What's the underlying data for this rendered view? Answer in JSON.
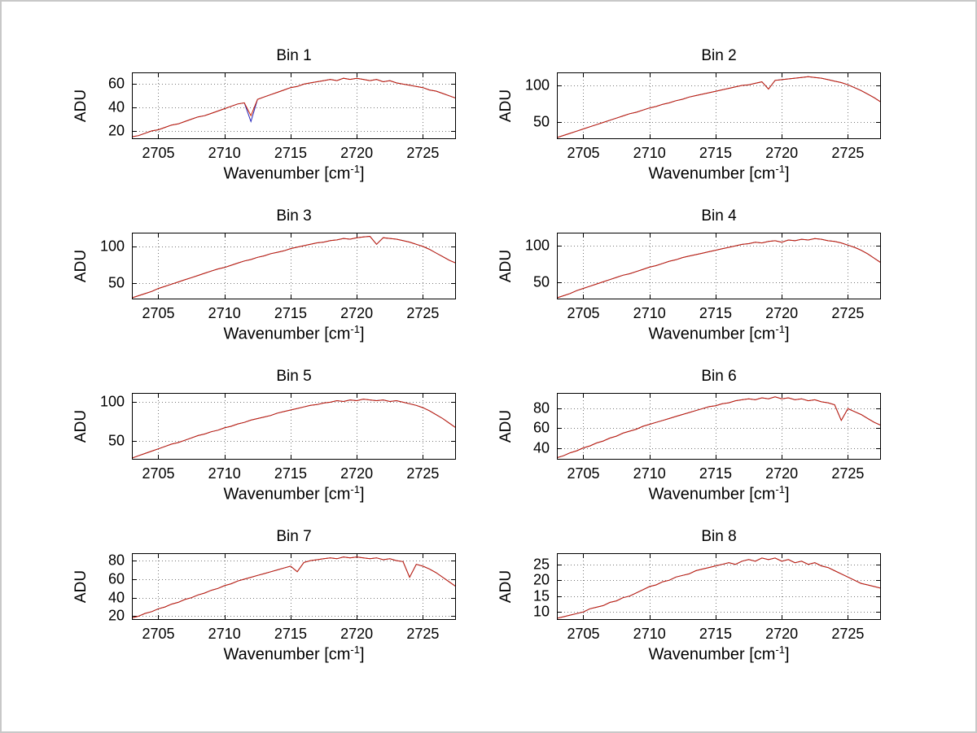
{
  "figure": {
    "background": "#ffffff",
    "border_color": "#c8c8c8"
  },
  "chart_data": {
    "type": "line",
    "layout": "4x2 grid of subplots",
    "grid": "dotted",
    "ylabel": "ADU",
    "xlabel": {
      "prefix": "Wavenumber [cm",
      "sup": "-1",
      "suffix": "]"
    },
    "xlim": [
      2703,
      2727.5
    ],
    "xticks": [
      2705,
      2710,
      2715,
      2720,
      2725
    ],
    "x": {
      "start": 2703,
      "step": 0.5,
      "n": 50
    },
    "series_colors": {
      "primary": "#cc2200",
      "secondary": "#2222bb"
    },
    "subplots": [
      {
        "title": "Bin 1",
        "ylim": [
          13,
          70
        ],
        "yticks": [
          20,
          40,
          60
        ],
        "values": [
          15,
          16,
          18,
          20,
          21,
          23,
          25,
          26,
          28,
          30,
          32,
          33,
          35,
          37,
          39,
          41,
          43,
          44,
          33,
          47,
          49,
          51,
          53,
          55,
          57,
          58,
          60,
          61,
          62,
          63,
          64,
          63,
          65,
          64,
          65,
          64,
          63,
          64,
          62,
          63,
          61,
          60,
          59,
          58,
          57,
          55,
          54,
          52,
          50,
          48
        ],
        "values_blue": [
          15,
          16,
          18,
          20,
          21,
          23,
          25,
          26,
          28,
          30,
          32,
          33,
          35,
          37,
          39,
          41,
          43,
          44,
          28,
          47,
          49,
          51,
          53,
          55,
          57,
          58,
          60,
          61,
          62,
          63,
          64,
          63,
          65,
          64,
          65,
          64,
          63,
          64,
          62,
          63,
          61,
          60,
          59,
          58,
          57,
          55,
          54,
          52,
          50,
          48
        ]
      },
      {
        "title": "Bin 2",
        "ylim": [
          26,
          118
        ],
        "yticks": [
          50,
          100
        ],
        "values": [
          28,
          31,
          34,
          37,
          40,
          43,
          46,
          49,
          52,
          55,
          58,
          61,
          63,
          66,
          69,
          71,
          74,
          76,
          79,
          81,
          84,
          86,
          88,
          90,
          92,
          94,
          96,
          98,
          100,
          101,
          103,
          105,
          95,
          107,
          108,
          109,
          110,
          111,
          112,
          111,
          110,
          108,
          106,
          104,
          101,
          97,
          93,
          88,
          83,
          77
        ]
      },
      {
        "title": "Bin 3",
        "ylim": [
          27,
          119
        ],
        "yticks": [
          50,
          100
        ],
        "values": [
          29,
          32,
          35,
          38,
          42,
          45,
          48,
          51,
          54,
          57,
          60,
          63,
          66,
          69,
          71,
          74,
          77,
          80,
          82,
          85,
          87,
          90,
          92,
          94,
          97,
          99,
          101,
          103,
          105,
          106,
          108,
          109,
          111,
          110,
          112,
          113,
          114,
          103,
          112,
          111,
          110,
          108,
          106,
          103,
          100,
          96,
          91,
          86,
          81,
          77
        ]
      },
      {
        "title": "Bin 4",
        "ylim": [
          27,
          118
        ],
        "yticks": [
          50,
          100
        ],
        "values": [
          29,
          32,
          35,
          39,
          42,
          45,
          48,
          51,
          54,
          57,
          60,
          62,
          65,
          68,
          71,
          73,
          76,
          79,
          81,
          84,
          86,
          88,
          90,
          92,
          94,
          96,
          98,
          100,
          102,
          103,
          105,
          104,
          106,
          107,
          105,
          108,
          107,
          109,
          108,
          110,
          109,
          107,
          106,
          104,
          101,
          98,
          94,
          89,
          83,
          77
        ]
      },
      {
        "title": "Bin 5",
        "ylim": [
          26,
          112
        ],
        "yticks": [
          50,
          100
        ],
        "values": [
          28,
          31,
          34,
          37,
          40,
          43,
          46,
          48,
          51,
          54,
          57,
          59,
          62,
          64,
          67,
          69,
          72,
          74,
          77,
          79,
          81,
          83,
          86,
          88,
          90,
          92,
          94,
          96,
          97,
          99,
          100,
          102,
          101,
          103,
          102,
          104,
          103,
          102,
          103,
          101,
          102,
          100,
          98,
          96,
          93,
          89,
          84,
          79,
          73,
          67
        ]
      },
      {
        "title": "Bin 6",
        "ylim": [
          28,
          96
        ],
        "yticks": [
          40,
          60,
          80
        ],
        "values": [
          30,
          32,
          35,
          37,
          40,
          42,
          45,
          47,
          50,
          52,
          55,
          57,
          59,
          62,
          64,
          66,
          68,
          70,
          72,
          74,
          76,
          78,
          80,
          82,
          83,
          85,
          86,
          88,
          89,
          90,
          89,
          91,
          90,
          92,
          90,
          91,
          89,
          90,
          88,
          89,
          87,
          86,
          84,
          68,
          80,
          77,
          74,
          70,
          66,
          63
        ]
      },
      {
        "title": "Bin 7",
        "ylim": [
          16,
          88
        ],
        "yticks": [
          20,
          40,
          60,
          80
        ],
        "values": [
          18,
          20,
          23,
          25,
          28,
          30,
          33,
          35,
          38,
          40,
          43,
          45,
          48,
          50,
          53,
          55,
          58,
          60,
          62,
          64,
          66,
          68,
          70,
          72,
          74,
          68,
          78,
          80,
          81,
          82,
          83,
          82,
          84,
          83,
          84,
          83,
          82,
          83,
          81,
          82,
          80,
          79,
          62,
          76,
          74,
          71,
          67,
          62,
          57,
          52
        ]
      },
      {
        "title": "Bin 8",
        "ylim": [
          7.5,
          28.5
        ],
        "yticks": [
          10,
          15,
          20,
          25
        ],
        "values": [
          8,
          8.5,
          9,
          9.5,
          10,
          11,
          11.5,
          12,
          13,
          13.5,
          14.5,
          15,
          16,
          17,
          18,
          18.5,
          19.5,
          20,
          21,
          21.5,
          22,
          23,
          23.5,
          24,
          24.5,
          25,
          25.5,
          25,
          26,
          26.5,
          26,
          27,
          26.5,
          27,
          26,
          26.5,
          25.5,
          26,
          25,
          25.5,
          24.5,
          24,
          23,
          22,
          21,
          20,
          19,
          18.5,
          18,
          17.5
        ]
      }
    ]
  }
}
